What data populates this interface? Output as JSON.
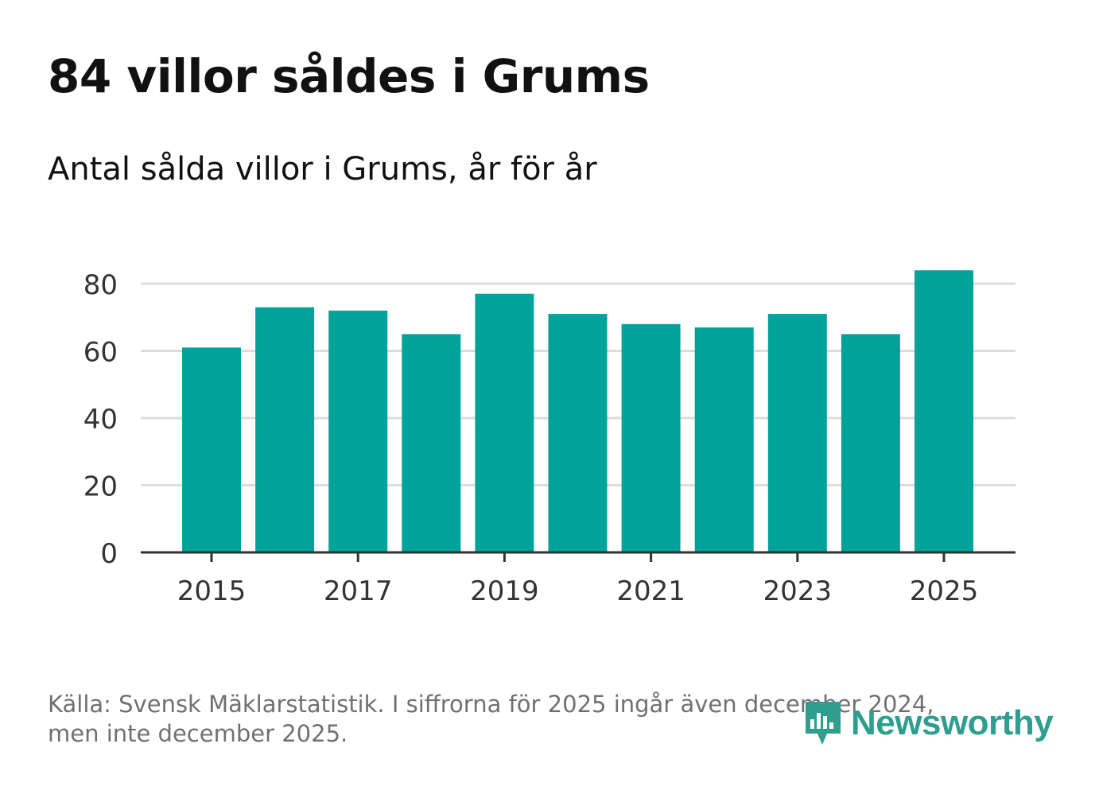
{
  "header": {
    "title": "84 villor såldes i Grums",
    "subtitle": "Antal sålda villor i Grums, år för år"
  },
  "footer": {
    "source_line1": "Källa: Svensk Mäklarstatistik. I siffrorna för 2025 ingår även december 2024,",
    "source_line2": "men inte december 2025."
  },
  "logo": {
    "text": "Newsworthy",
    "icon": "bar-chart-speech-bubble-icon"
  },
  "colors": {
    "bar": "#00a39a",
    "grid": "#dcdcdc",
    "axis": "#333333",
    "tick_text": "#333333",
    "logo": "#2f9e8f"
  },
  "chart_data": {
    "type": "bar",
    "title": "84 villor såldes i Grums",
    "subtitle": "Antal sålda villor i Grums, år för år",
    "xlabel": "",
    "ylabel": "",
    "categories": [
      "2015",
      "2016",
      "2017",
      "2018",
      "2019",
      "2020",
      "2021",
      "2022",
      "2023",
      "2024",
      "2025"
    ],
    "values": [
      61,
      73,
      72,
      65,
      77,
      71,
      68,
      67,
      71,
      65,
      84
    ],
    "ylim": [
      0,
      88
    ],
    "yticks": [
      0,
      20,
      40,
      60,
      80
    ],
    "xtick_labels": [
      "2015",
      "2017",
      "2019",
      "2021",
      "2023",
      "2025"
    ],
    "grid": true,
    "legend": "none"
  }
}
